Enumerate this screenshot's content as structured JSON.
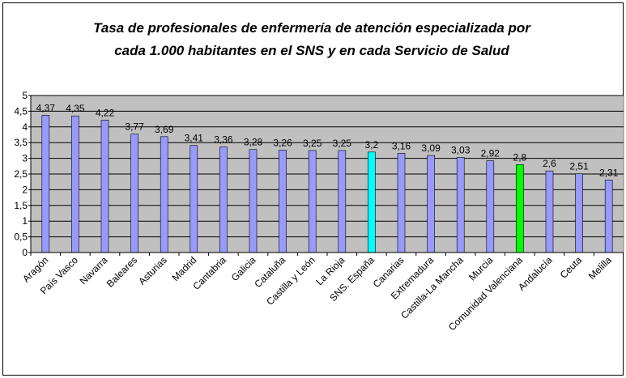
{
  "chart_data": {
    "type": "bar",
    "title": [
      "Tasa de profesionales de enfermería de atención especializada por",
      "cada 1.000 habitantes en el SNS y en cada Servicio de Salud"
    ],
    "categories": [
      "Aragón",
      "País Vasco",
      "Navarra",
      "Baleares",
      "Asturias",
      "Madrid",
      "Cantabria",
      "Galicia",
      "Cataluña",
      "Castilla y León",
      "La Rioja",
      "SNS. España",
      "Canarias",
      "Extremadura",
      "Castilla-La Mancha",
      "Murcia",
      "Comunidad Valenciana",
      "Andalucía",
      "Ceuta",
      "Melilla"
    ],
    "values": [
      4.37,
      4.35,
      4.22,
      3.77,
      3.69,
      3.41,
      3.36,
      3.28,
      3.26,
      3.25,
      3.25,
      3.2,
      3.16,
      3.09,
      3.03,
      2.92,
      2.8,
      2.6,
      2.51,
      2.31
    ],
    "value_labels": [
      "4,37",
      "4,35",
      "4,22",
      "3,77",
      "3,69",
      "3,41",
      "3,36",
      "3,28",
      "3,26",
      "3,25",
      "3,25",
      "3,2",
      "3,16",
      "3,09",
      "3,03",
      "2,92",
      "2,8",
      "2,6",
      "2,51",
      "2,31"
    ],
    "colors": [
      "#9999ff",
      "#9999ff",
      "#9999ff",
      "#9999ff",
      "#9999ff",
      "#9999ff",
      "#9999ff",
      "#9999ff",
      "#9999ff",
      "#9999ff",
      "#9999ff",
      "#00ffff",
      "#9999ff",
      "#9999ff",
      "#9999ff",
      "#9999ff",
      "#00ff00",
      "#9999ff",
      "#9999ff",
      "#9999ff"
    ],
    "ylim": [
      0,
      5
    ],
    "yticks": [
      0,
      {
        "value": 0.5,
        "label": "0,5"
      },
      1,
      {
        "value": 1.5,
        "label": "1,5"
      },
      2,
      {
        "value": 2.5,
        "label": "2,5"
      },
      3,
      {
        "value": 3.5,
        "label": "3,5"
      },
      4,
      {
        "value": 4.5,
        "label": "4,5"
      },
      5
    ],
    "grid": true,
    "plot_background": "#c0c0c0"
  }
}
